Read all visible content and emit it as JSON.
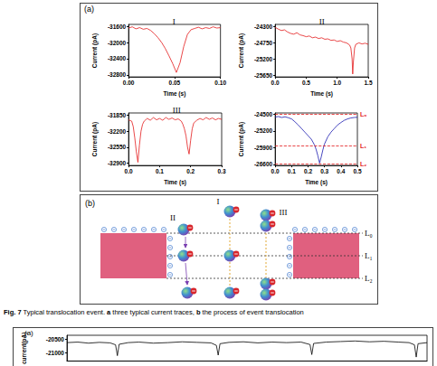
{
  "figure_a": {
    "panel_label": "(a)"
  },
  "chart_data": [
    {
      "type": "line",
      "title": "I",
      "x_label": "Time (s)",
      "y_label": "Current (pA)",
      "color": "#e31a1c",
      "x": [
        0,
        0.004,
        0.008,
        0.012,
        0.016,
        0.02,
        0.024,
        0.028,
        0.032,
        0.036,
        0.04,
        0.044,
        0.048,
        0.052,
        0.056,
        0.06,
        0.064,
        0.068,
        0.072,
        0.076,
        0.08,
        0.084,
        0.088,
        0.092,
        0.096,
        0.1
      ],
      "values": [
        -31640,
        -31610,
        -31660,
        -31630,
        -31670,
        -31650,
        -31700,
        -31780,
        -31880,
        -32000,
        -32150,
        -32330,
        -32520,
        -32740,
        -32500,
        -32100,
        -31800,
        -31680,
        -31650,
        -31620,
        -31660,
        -31630,
        -31650,
        -31610,
        -31640,
        -31630
      ],
      "xlim": [
        0,
        0.1
      ],
      "xticks": [
        {
          "value": 0,
          "label": "0.00"
        },
        0.05,
        {
          "value": 0.1,
          "label": "0.10"
        }
      ],
      "ylim": [
        -32850,
        -31550
      ],
      "yticks": [
        -31600,
        -32000,
        -32400,
        -32800
      ]
    },
    {
      "type": "line",
      "title": "II",
      "x_label": "Time (s)",
      "y_label": "Current (pA)",
      "color": "#e31a1c",
      "x": [
        0,
        0.05,
        0.1,
        0.15,
        0.2,
        0.25,
        0.3,
        0.35,
        0.4,
        0.45,
        0.5,
        0.55,
        0.6,
        0.65,
        0.7,
        0.75,
        0.8,
        0.85,
        0.9,
        0.95,
        1.0,
        1.05,
        1.1,
        1.15,
        1.2,
        1.22,
        1.24,
        1.25,
        1.26,
        1.28,
        1.3,
        1.35,
        1.4,
        1.45,
        1.5
      ],
      "values": [
        -24330,
        -24380,
        -24420,
        -24400,
        -24460,
        -24500,
        -24520,
        -24480,
        -24540,
        -24560,
        -24590,
        -24570,
        -24620,
        -24600,
        -24640,
        -24620,
        -24660,
        -24650,
        -24690,
        -24680,
        -24720,
        -24700,
        -24740,
        -24760,
        -24820,
        -24900,
        -25200,
        -25620,
        -25300,
        -24900,
        -24800,
        -24760,
        -24790,
        -24770,
        -24800
      ],
      "xlim": [
        0,
        1.5
      ],
      "xticks": [
        {
          "value": 0,
          "label": "0.0"
        },
        0.5,
        {
          "value": 1,
          "label": "1.0"
        },
        1.5
      ],
      "ylim": [
        -25700,
        -24250
      ],
      "yticks": [
        -24300,
        -24750,
        -25200,
        -25650
      ]
    },
    {
      "type": "line",
      "title": "III",
      "x_label": "Time (s)",
      "y_label": "Current (pA)",
      "color": "#e31a1c",
      "x": [
        0,
        0.01,
        0.015,
        0.02,
        0.025,
        0.03,
        0.035,
        0.04,
        0.045,
        0.05,
        0.06,
        0.07,
        0.08,
        0.09,
        0.1,
        0.11,
        0.12,
        0.13,
        0.14,
        0.15,
        0.16,
        0.17,
        0.175,
        0.18,
        0.185,
        0.19,
        0.195,
        0.2,
        0.205,
        0.21,
        0.22,
        0.23,
        0.24,
        0.25,
        0.26,
        0.27,
        0.28,
        0.29,
        0.3
      ],
      "values": [
        -31950,
        -31980,
        -32100,
        -32350,
        -32650,
        -32880,
        -32500,
        -32200,
        -32050,
        -31980,
        -31920,
        -31960,
        -31900,
        -31950,
        -31920,
        -31960,
        -31900,
        -31940,
        -31910,
        -31950,
        -31930,
        -31980,
        -32050,
        -32150,
        -32300,
        -32550,
        -32700,
        -32400,
        -32150,
        -32020,
        -31960,
        -31920,
        -31950,
        -31900,
        -31940,
        -31910,
        -31950,
        -31920,
        -31940
      ],
      "xlim": [
        0,
        0.3
      ],
      "xticks": [
        {
          "value": 0,
          "label": "0.0"
        },
        0.1,
        0.2,
        0.3
      ],
      "ylim": [
        -32950,
        -31800
      ],
      "yticks": [
        -31850,
        -32200,
        -32550,
        -32900
      ]
    },
    {
      "type": "line",
      "x_label": "Time (s)",
      "y_label": "Current (pA)",
      "color": "#1a1ab0",
      "x": [
        0,
        0.02,
        0.04,
        0.06,
        0.08,
        0.1,
        0.12,
        0.14,
        0.16,
        0.18,
        0.2,
        0.22,
        0.24,
        0.25,
        0.26,
        0.27,
        0.28,
        0.29,
        0.3,
        0.32,
        0.34,
        0.36,
        0.38,
        0.4,
        0.42,
        0.44,
        0.46,
        0.48,
        0.5
      ],
      "values": [
        -24620,
        -24600,
        -24640,
        -24610,
        -24650,
        -24700,
        -24820,
        -24950,
        -25100,
        -25250,
        -25400,
        -25550,
        -25800,
        -26000,
        -26250,
        -26550,
        -26300,
        -26000,
        -25750,
        -25450,
        -25250,
        -25100,
        -24950,
        -24850,
        -24760,
        -24700,
        -24660,
        -24640,
        -24630
      ],
      "xlim": [
        0,
        0.5
      ],
      "xticks": [
        {
          "value": 0,
          "label": "0.0"
        },
        0.1,
        0.2,
        0.3,
        0.4,
        0.5
      ],
      "ylim": [
        -26650,
        -24450
      ],
      "yticks": [
        -24500,
        -25200,
        -25900,
        -26600
      ],
      "reference_lines": [
        {
          "label": "L₀",
          "value": -24510,
          "color": "#e31a1c"
        },
        {
          "label": "L₁",
          "value": -25820,
          "color": "#e31a1c"
        },
        {
          "label": "L₂",
          "value": -26580,
          "color": "#e31a1c"
        }
      ]
    }
  ],
  "diagram": {
    "panel_label": "(b)",
    "particles": [
      "I",
      "II",
      "III"
    ],
    "levels": [
      "L₀",
      "L₁",
      "L₂"
    ]
  },
  "caption": {
    "label": "Fig. 7",
    "text": "Typical translocation event.",
    "parts": [
      {
        "letter": "a",
        "text": "three typical current traces,"
      },
      {
        "letter": "b",
        "text": "the process of event translocation"
      }
    ]
  },
  "next_figure": {
    "panel_label": "(a)",
    "chart_data": {
      "type": "line",
      "y_label": "current(pA)",
      "color": "#000000",
      "tick_labels": "y",
      "x": [
        0,
        3,
        6,
        9,
        12,
        13.5,
        14,
        14.5,
        17,
        20,
        24,
        28,
        32,
        36,
        40,
        41.5,
        42,
        42.5,
        45,
        49,
        53,
        57,
        61,
        65,
        67.5,
        68,
        68.5,
        72,
        76,
        80,
        84,
        88,
        92,
        95,
        96.5,
        97,
        97.5,
        100
      ],
      "values": [
        -20620,
        -20600,
        -20640,
        -20610,
        -20630,
        -20700,
        -21100,
        -20680,
        -20620,
        -20600,
        -20640,
        -20620,
        -20590,
        -20610,
        -20630,
        -20720,
        -21080,
        -20660,
        -20610,
        -20590,
        -20630,
        -20600,
        -20620,
        -20600,
        -20690,
        -21060,
        -20650,
        -20600,
        -20580,
        -20560,
        -20590,
        -20570,
        -20600,
        -20620,
        -20700,
        -21150,
        -20660,
        -20620
      ],
      "xlim": [
        0,
        100
      ],
      "ylim": [
        -21300,
        -20350
      ],
      "yticks": [
        -20500,
        -21000
      ]
    }
  }
}
